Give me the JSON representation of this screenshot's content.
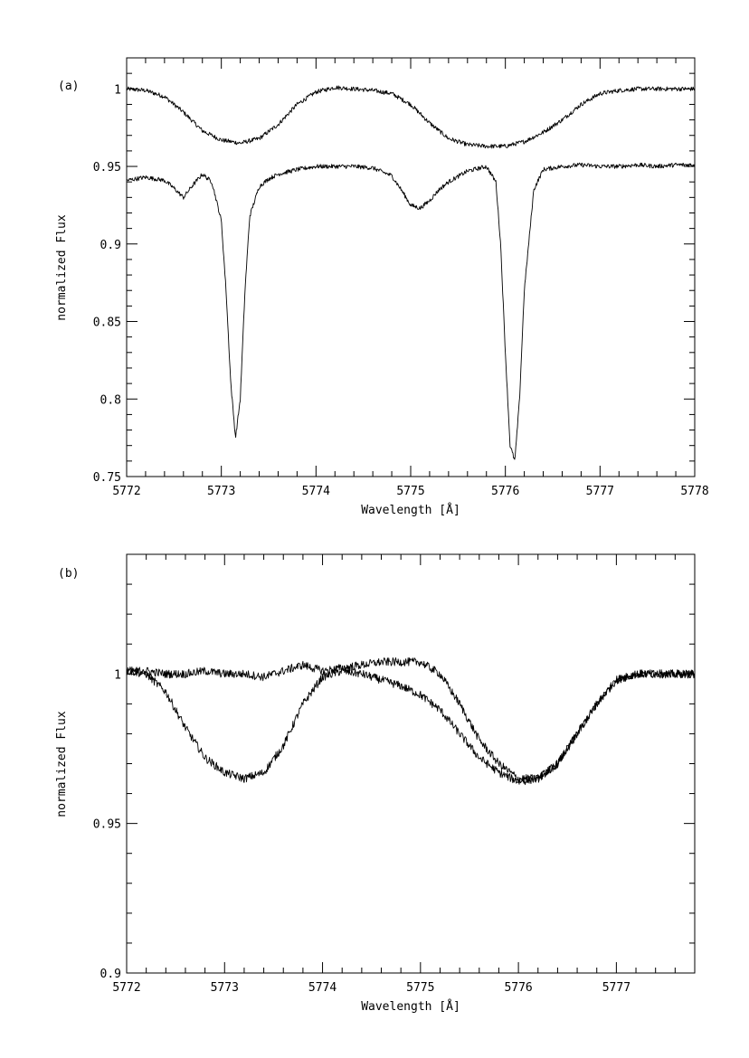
{
  "chart_data": [
    {
      "type": "line",
      "panel_label": "(a)",
      "xlabel": "Wavelength [Å]",
      "ylabel": "normalized Flux",
      "xlim": [
        5772,
        5778
      ],
      "ylim": [
        0.75,
        1.02
      ],
      "x_ticks": [
        5772,
        5773,
        5774,
        5775,
        5776,
        5777,
        5778
      ],
      "x_tick_labels": [
        "5772",
        "5773",
        "5774",
        "5775",
        "5776",
        "5777",
        "5778"
      ],
      "y_ticks": [
        0.75,
        0.8,
        0.85,
        0.9,
        0.95,
        1
      ],
      "y_tick_labels": [
        "0.75",
        "0.8",
        "0.85",
        "0.9",
        "0.95",
        "1"
      ],
      "grid": false,
      "series": [
        {
          "x": [
            5772.0,
            5772.2,
            5772.4,
            5772.6,
            5772.8,
            5773.0,
            5773.2,
            5773.4,
            5773.6,
            5773.8,
            5774.0,
            5774.2,
            5774.4,
            5774.6,
            5774.8,
            5775.0,
            5775.2,
            5775.4,
            5775.6,
            5775.8,
            5776.0,
            5776.2,
            5776.4,
            5776.6,
            5776.8,
            5777.0,
            5777.2,
            5777.4,
            5777.6,
            5777.8,
            5778.0
          ],
          "values": [
            1.0,
            0.999,
            0.995,
            0.985,
            0.973,
            0.967,
            0.965,
            0.968,
            0.977,
            0.99,
            0.998,
            1.001,
            1.0,
            0.999,
            0.997,
            0.99,
            0.978,
            0.968,
            0.964,
            0.963,
            0.963,
            0.966,
            0.972,
            0.98,
            0.99,
            0.997,
            0.999,
            1.0,
            1.0,
            1.0,
            1.0
          ]
        },
        {
          "x": [
            5772.0,
            5772.2,
            5772.4,
            5772.5,
            5772.6,
            5772.7,
            5772.8,
            5772.9,
            5773.0,
            5773.05,
            5773.1,
            5773.15,
            5773.2,
            5773.25,
            5773.3,
            5773.4,
            5773.5,
            5773.6,
            5773.8,
            5774.0,
            5774.2,
            5774.4,
            5774.6,
            5774.8,
            5774.9,
            5775.0,
            5775.1,
            5775.2,
            5775.3,
            5775.4,
            5775.6,
            5775.8,
            5775.9,
            5775.95,
            5776.0,
            5776.05,
            5776.1,
            5776.15,
            5776.2,
            5776.3,
            5776.4,
            5776.6,
            5776.8,
            5777.0,
            5777.2,
            5777.4,
            5777.6,
            5777.8,
            5778.0
          ],
          "values": [
            0.941,
            0.943,
            0.941,
            0.936,
            0.93,
            0.938,
            0.945,
            0.94,
            0.915,
            0.87,
            0.81,
            0.775,
            0.8,
            0.87,
            0.918,
            0.937,
            0.942,
            0.945,
            0.948,
            0.95,
            0.95,
            0.95,
            0.949,
            0.944,
            0.935,
            0.925,
            0.923,
            0.928,
            0.935,
            0.94,
            0.947,
            0.95,
            0.94,
            0.9,
            0.83,
            0.77,
            0.76,
            0.8,
            0.87,
            0.935,
            0.948,
            0.95,
            0.951,
            0.95,
            0.95,
            0.951,
            0.95,
            0.951,
            0.951
          ]
        }
      ]
    },
    {
      "type": "line",
      "panel_label": "(b)",
      "xlabel": "Wavelength [Å]",
      "ylabel": "normalized Flux",
      "xlim": [
        5772,
        5777.8
      ],
      "ylim": [
        0.9,
        1.04
      ],
      "x_ticks": [
        5772,
        5773,
        5774,
        5775,
        5776,
        5777
      ],
      "x_tick_labels": [
        "5772",
        "5773",
        "5774",
        "5775",
        "5776",
        "5777"
      ],
      "y_ticks": [
        0.9,
        0.95,
        1
      ],
      "y_tick_labels": [
        "0.9",
        "0.95",
        "1"
      ],
      "grid": false,
      "series": [
        {
          "x": [
            5772.0,
            5772.2,
            5772.4,
            5772.6,
            5772.8,
            5773.0,
            5773.2,
            5773.4,
            5773.6,
            5773.8,
            5774.0,
            5774.2,
            5774.4,
            5774.6,
            5774.8,
            5775.0,
            5775.2,
            5775.4,
            5775.6,
            5775.8,
            5776.0,
            5776.2,
            5776.4,
            5776.6,
            5776.8,
            5777.0,
            5777.2,
            5777.4,
            5777.6,
            5777.8
          ],
          "values": [
            1.001,
            1.0,
            0.994,
            0.982,
            0.972,
            0.967,
            0.965,
            0.967,
            0.976,
            0.99,
            0.999,
            1.001,
            1.0,
            0.998,
            0.996,
            0.993,
            0.988,
            0.98,
            0.972,
            0.967,
            0.964,
            0.965,
            0.97,
            0.98,
            0.99,
            0.998,
            1.0,
            1.0,
            1.0,
            1.0
          ]
        },
        {
          "x": [
            5772.0,
            5772.2,
            5772.4,
            5772.6,
            5772.8,
            5773.0,
            5773.2,
            5773.4,
            5773.6,
            5773.8,
            5774.0,
            5774.2,
            5774.4,
            5774.6,
            5774.8,
            5775.0,
            5775.2,
            5775.4,
            5775.6,
            5775.8,
            5776.0,
            5776.2,
            5776.4,
            5776.6,
            5776.8,
            5777.0,
            5777.2,
            5777.4,
            5777.6,
            5777.8
          ],
          "values": [
            1.001,
            1.001,
            1.0,
            1.0,
            1.001,
            1.0,
            1.0,
            0.999,
            1.001,
            1.003,
            1.001,
            1.002,
            1.003,
            1.004,
            1.004,
            1.004,
            1.0,
            0.99,
            0.978,
            0.97,
            0.965,
            0.965,
            0.97,
            0.98,
            0.99,
            0.998,
            1.0,
            1.0,
            1.0,
            1.0
          ]
        }
      ]
    }
  ]
}
